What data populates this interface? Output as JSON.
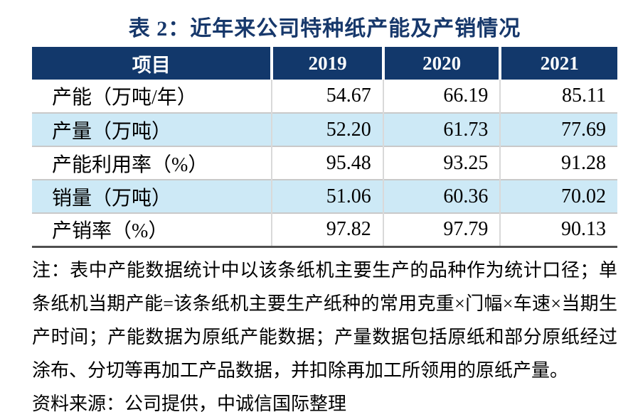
{
  "title": "表 2：近年来公司特种纸产能及产销情况",
  "table": {
    "headers": [
      "项目",
      "2019",
      "2020",
      "2021"
    ],
    "rows": [
      {
        "label": "产能（万吨/年）",
        "values": [
          "54.67",
          "66.19",
          "85.11"
        ]
      },
      {
        "label": "产量（万吨）",
        "values": [
          "52.20",
          "61.73",
          "77.69"
        ]
      },
      {
        "label": "产能利用率（%）",
        "values": [
          "95.48",
          "93.25",
          "91.28"
        ]
      },
      {
        "label": "销量（万吨）",
        "values": [
          "51.06",
          "60.36",
          "70.02"
        ]
      },
      {
        "label": "产销率（%）",
        "values": [
          "97.82",
          "97.79",
          "90.13"
        ]
      }
    ]
  },
  "note": "注：表中产能数据统计中以该条纸机主要生产的品种作为统计口径；单条纸机当期产能=该条纸机主要生产纸种的常用克重×门幅×车速×当期生产时间；产能数据为原纸产能数据；产量数据包括原纸和部分原纸经过涂布、分切等再加工产品数据，并扣除再加工所领用的原纸产量。",
  "source": "资料来源：公司提供，中诚信国际整理",
  "colors": {
    "header_bg": "#12386B",
    "title_text": "#17386B",
    "alt_row_bg": "#CDE9F6",
    "grid_line": "#C9C9C9",
    "column_line": "#D9D9D9",
    "table_bottom_border": "#4F4F4F",
    "header_text": "#FFFFFF",
    "body_text": "#000000"
  }
}
